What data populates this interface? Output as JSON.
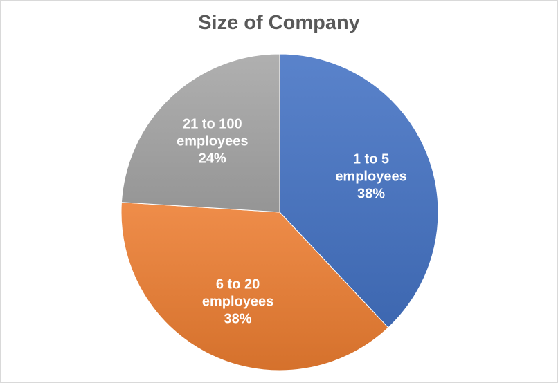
{
  "chart_data": {
    "type": "pie",
    "title": "Size of Company",
    "slices": [
      {
        "label": "1 to 5 employees",
        "label_lines": [
          "1 to 5",
          "employees"
        ],
        "value": 38,
        "value_label": "38%",
        "color": "#4472C4"
      },
      {
        "label": "6 to 20 employees",
        "label_lines": [
          "6 to 20",
          "employees"
        ],
        "value": 38,
        "value_label": "38%",
        "color": "#ED7D31"
      },
      {
        "label": "21 to 100 employees",
        "label_lines": [
          "21 to 100",
          "employees"
        ],
        "value": 24,
        "value_label": "24%",
        "color": "#A5A5A5"
      }
    ],
    "start_angle_deg": 0,
    "direction": "clockwise",
    "legend": "none",
    "data_labels": "inside"
  }
}
